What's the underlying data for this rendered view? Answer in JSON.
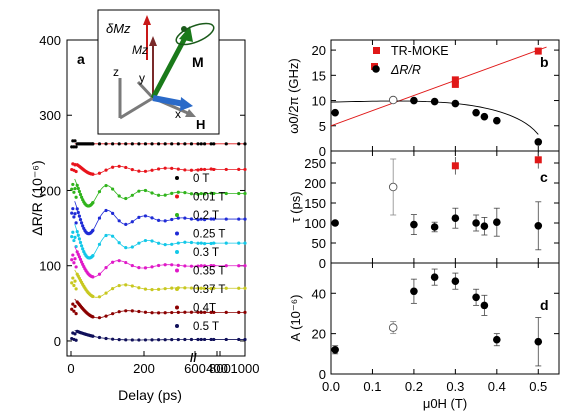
{
  "chart_data": [
    {
      "panel": "a",
      "type": "scatter",
      "xlabel": "Delay (ps)",
      "ylabel": "ΔR/R (10⁻⁶)",
      "ylim": [
        -20,
        400
      ],
      "xticks": [
        "0",
        "200",
        "400",
        "600",
        "800",
        "1000"
      ],
      "yticks": [
        "0",
        "100",
        "200",
        "300",
        "400"
      ],
      "axis_break": "//",
      "legend_position": "right",
      "series": [
        {
          "name": "0 T",
          "color": "#000000",
          "offset": 262,
          "amp": 0,
          "freq": 0,
          "decay": 1
        },
        {
          "name": "0.01 T",
          "color": "#e8141c",
          "offset": 228,
          "amp": 10,
          "freq": 7.5,
          "decay": 150
        },
        {
          "name": "0.2 T",
          "color": "#30b41c",
          "offset": 196,
          "amp": 26,
          "freq": 10,
          "decay": 110
        },
        {
          "name": "0.25 T",
          "color": "#1f2bd6",
          "offset": 162,
          "amp": 32,
          "freq": 9.8,
          "decay": 100
        },
        {
          "name": "0.3 T",
          "color": "#13c8e8",
          "offset": 130,
          "amp": 34,
          "freq": 9.4,
          "decay": 95
        },
        {
          "name": "0.35 T",
          "color": "#e019c8",
          "offset": 100,
          "amp": 32,
          "freq": 7.4,
          "decay": 85
        },
        {
          "name": "0.37 T",
          "color": "#c8c820",
          "offset": 70,
          "amp": 30,
          "freq": 6.5,
          "decay": 80
        },
        {
          "name": "0.4T",
          "color": "#8b0000",
          "offset": 38,
          "amp": 22,
          "freq": 6.0,
          "decay": 70
        },
        {
          "name": "0.5 T",
          "color": "#10105a",
          "offset": 2,
          "amp": 14,
          "freq": 2.0,
          "decay": 70
        }
      ],
      "inset": {
        "labels": [
          "δMz",
          "Mz",
          "M",
          "H",
          "x",
          "y",
          "z"
        ]
      }
    },
    {
      "panel": "b",
      "type": "scatter",
      "ylabel": "ω0/2π (GHz)",
      "ylim": [
        0,
        22
      ],
      "xlim": [
        0,
        0.55
      ],
      "yticks": [
        "0",
        "5",
        "10",
        "15",
        "20"
      ],
      "legend_position": "top-right",
      "series": [
        {
          "name": "TR-MOKE",
          "color": "#e01818",
          "points": [
            [
              0.3,
              13.2
            ],
            [
              0.3,
              14.1
            ],
            [
              0.5,
              19.8
            ]
          ]
        },
        {
          "name": "ΔR/R",
          "color": "#000000",
          "points": [
            [
              0.01,
              7.6
            ],
            [
              0.2,
              10.0
            ],
            [
              0.25,
              9.8
            ],
            [
              0.3,
              9.4
            ],
            [
              0.35,
              7.6
            ],
            [
              0.37,
              6.8
            ],
            [
              0.4,
              6.0
            ],
            [
              0.5,
              1.8
            ]
          ],
          "open_points": [
            [
              0.15,
              10.1
            ]
          ]
        }
      ]
    },
    {
      "panel": "c",
      "type": "scatter",
      "ylabel": "τ (ps)",
      "ylim": [
        0,
        280
      ],
      "xlim": [
        0,
        0.55
      ],
      "yticks": [
        "0",
        "50",
        "100",
        "150",
        "200",
        "250"
      ],
      "series": [
        {
          "name": "ΔR/R",
          "color": "#000000",
          "points": [
            [
              0.01,
              100,
              0
            ],
            [
              0.2,
              96,
              25
            ],
            [
              0.25,
              90,
              12
            ],
            [
              0.3,
              112,
              25
            ],
            [
              0.35,
              100,
              20
            ],
            [
              0.37,
              92,
              22
            ],
            [
              0.4,
              102,
              35
            ],
            [
              0.5,
              93,
              60
            ]
          ],
          "open_points": [
            [
              0.15,
              190,
              70
            ]
          ]
        },
        {
          "name": "TR-MOKE",
          "color": "#e01818",
          "points": [
            [
              0.3,
              243
            ],
            [
              0.5,
              258
            ]
          ]
        }
      ]
    },
    {
      "panel": "d",
      "type": "scatter",
      "xlabel": "μ0H (T)",
      "ylabel": "A (10⁻⁶)",
      "ylim": [
        0,
        55
      ],
      "xlim": [
        0,
        0.55
      ],
      "yticks": [
        "0",
        "20",
        "40"
      ],
      "xticks": [
        "0.0",
        "0.1",
        "0.2",
        "0.3",
        "0.4",
        "0.5"
      ],
      "series": [
        {
          "name": "ΔR/R",
          "color": "#000000",
          "points": [
            [
              0.01,
              12,
              2
            ],
            [
              0.2,
              41,
              6
            ],
            [
              0.25,
              48,
              4
            ],
            [
              0.3,
              46,
              4
            ],
            [
              0.35,
              38,
              4
            ],
            [
              0.37,
              34,
              5
            ],
            [
              0.4,
              17,
              3
            ],
            [
              0.5,
              16,
              12
            ]
          ],
          "open_points": [
            [
              0.15,
              23,
              3
            ]
          ]
        }
      ]
    }
  ]
}
